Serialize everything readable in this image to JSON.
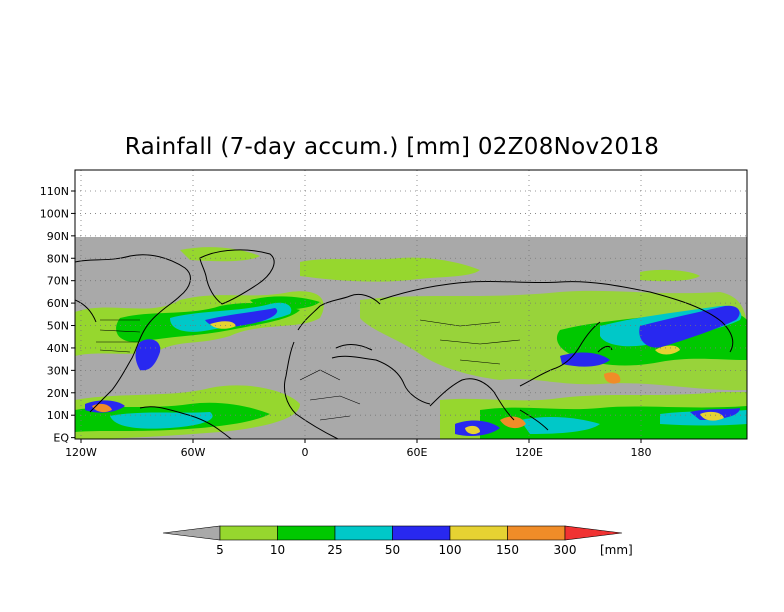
{
  "title": "Rainfall (7-day accum.) [mm] 02Z08Nov2018",
  "map": {
    "lat_ticks": [
      "110N",
      "100N",
      "90N",
      "80N",
      "70N",
      "60N",
      "50N",
      "40N",
      "30N",
      "20N",
      "10N",
      "EQ"
    ],
    "lon_ticks": [
      "120W",
      "60W",
      "0",
      "60E",
      "120E",
      "180"
    ],
    "no_data_color": "#a9a9a9",
    "coastline_color": "#000000",
    "gridline_color": "#777777"
  },
  "colorbar": {
    "unit": "[mm]",
    "thresholds": [
      "5",
      "10",
      "25",
      "50",
      "100",
      "150",
      "300"
    ],
    "colors": [
      "#a9a9a9",
      "#96d72e",
      "#00c800",
      "#00c8c8",
      "#2828f0",
      "#e6d232",
      "#f08c28",
      "#f03232"
    ]
  }
}
